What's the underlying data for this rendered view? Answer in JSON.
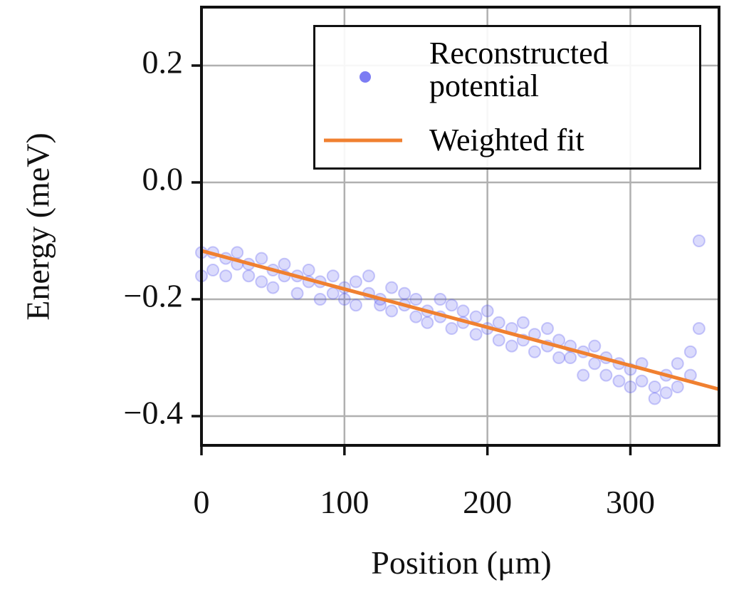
{
  "chart_data": {
    "type": "scatter",
    "xlabel": "Position (μm)",
    "ylabel": "Energy (meV)",
    "xlim": [
      0,
      362
    ],
    "ylim": [
      -0.45,
      0.3
    ],
    "xticks": [
      0,
      100,
      200,
      300
    ],
    "yticks": [
      {
        "value": -0.4,
        "label": "−0.4"
      },
      {
        "value": -0.2,
        "label": "−0.2"
      },
      {
        "value": 0,
        "label": "0.0"
      },
      0.2
    ],
    "grid": true,
    "legend": "upper right",
    "series": [
      {
        "name": "Reconstructed potential",
        "type": "scatter",
        "color": "#5b5bf0",
        "x": [
          0,
          0,
          8,
          8,
          17,
          17,
          25,
          25,
          33,
          33,
          42,
          42,
          50,
          50,
          58,
          58,
          67,
          67,
          75,
          75,
          83,
          83,
          92,
          92,
          100,
          100,
          108,
          108,
          117,
          117,
          125,
          125,
          133,
          133,
          142,
          142,
          150,
          150,
          158,
          158,
          167,
          167,
          175,
          175,
          183,
          183,
          192,
          192,
          200,
          200,
          208,
          208,
          217,
          217,
          225,
          225,
          233,
          233,
          242,
          242,
          250,
          250,
          258,
          258,
          267,
          267,
          275,
          275,
          283,
          283,
          292,
          292,
          300,
          300,
          308,
          308,
          317,
          317,
          325,
          325,
          333,
          333,
          342,
          342,
          348,
          348
        ],
        "y": [
          -0.12,
          -0.16,
          -0.12,
          -0.15,
          -0.13,
          -0.16,
          -0.14,
          -0.12,
          -0.14,
          -0.16,
          -0.13,
          -0.17,
          -0.15,
          -0.18,
          -0.14,
          -0.16,
          -0.16,
          -0.19,
          -0.15,
          -0.17,
          -0.17,
          -0.2,
          -0.16,
          -0.19,
          -0.18,
          -0.2,
          -0.17,
          -0.21,
          -0.16,
          -0.19,
          -0.2,
          -0.21,
          -0.18,
          -0.22,
          -0.21,
          -0.19,
          -0.23,
          -0.2,
          -0.22,
          -0.24,
          -0.2,
          -0.23,
          -0.21,
          -0.25,
          -0.24,
          -0.22,
          -0.23,
          -0.26,
          -0.22,
          -0.25,
          -0.27,
          -0.24,
          -0.25,
          -0.28,
          -0.24,
          -0.27,
          -0.26,
          -0.29,
          -0.25,
          -0.28,
          -0.27,
          -0.3,
          -0.28,
          -0.3,
          -0.29,
          -0.33,
          -0.28,
          -0.31,
          -0.3,
          -0.33,
          -0.31,
          -0.34,
          -0.32,
          -0.35,
          -0.31,
          -0.34,
          -0.35,
          -0.37,
          -0.33,
          -0.36,
          -0.31,
          -0.35,
          -0.33,
          -0.29,
          -0.25,
          -0.1
        ]
      },
      {
        "name": "Weighted fit",
        "type": "line",
        "color": "#f08030",
        "x": [
          0,
          362
        ],
        "y": [
          -0.117,
          -0.354
        ]
      }
    ]
  }
}
